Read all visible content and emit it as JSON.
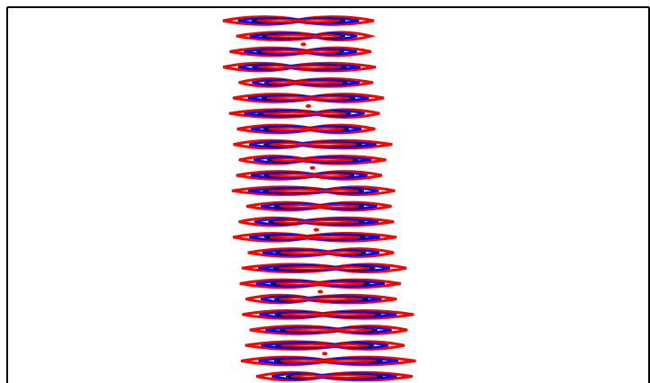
{
  "chart_data": {
    "type": "contour",
    "colors": [
      "#ff0000",
      "#0000ff",
      "#000000"
    ]
  }
}
